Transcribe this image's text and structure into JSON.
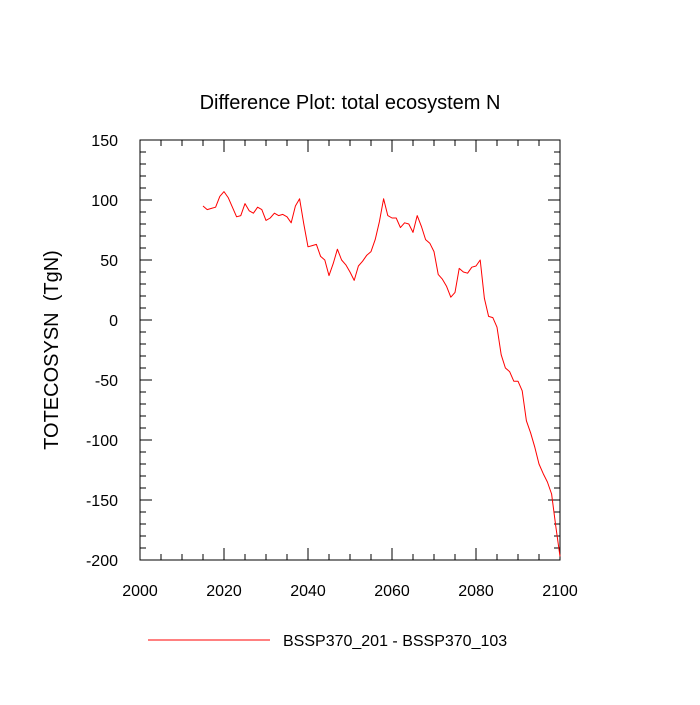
{
  "chart_data": {
    "type": "line",
    "title": "Difference Plot: total ecosystem N",
    "xlabel": "",
    "ylabel": "TOTECOSYSN  (TgN)",
    "xlim": [
      2000,
      2100
    ],
    "ylim": [
      -200,
      150
    ],
    "xticks": [
      2000,
      2020,
      2040,
      2060,
      2080,
      2100
    ],
    "yticks": [
      150,
      100,
      50,
      0,
      -50,
      -100,
      -150,
      -200
    ],
    "grid": false,
    "legend_position": "bottom",
    "series": [
      {
        "name": "BSSP370_201 - BSSP370_103",
        "color": "#ff0000",
        "x": [
          2015,
          2016,
          2017,
          2018,
          2019,
          2020,
          2021,
          2022,
          2023,
          2024,
          2025,
          2026,
          2027,
          2028,
          2029,
          2030,
          2031,
          2032,
          2033,
          2034,
          2035,
          2036,
          2037,
          2038,
          2039,
          2040,
          2041,
          2042,
          2043,
          2044,
          2045,
          2046,
          2047,
          2048,
          2049,
          2050,
          2051,
          2052,
          2053,
          2054,
          2055,
          2056,
          2057,
          2058,
          2059,
          2060,
          2061,
          2062,
          2063,
          2064,
          2065,
          2066,
          2067,
          2068,
          2069,
          2070,
          2071,
          2072,
          2073,
          2074,
          2075,
          2076,
          2077,
          2078,
          2079,
          2080,
          2081,
          2082,
          2083,
          2084,
          2085,
          2086,
          2087,
          2088,
          2089,
          2090,
          2091,
          2092,
          2093,
          2094,
          2095,
          2096,
          2097,
          2098,
          2099,
          2100
        ],
        "y": [
          95,
          92,
          93,
          94,
          103,
          107,
          102,
          94,
          86,
          87,
          97,
          91,
          89,
          94,
          92,
          83,
          85,
          89,
          87,
          88,
          86,
          81,
          95,
          101,
          80,
          61,
          62,
          63,
          53,
          50,
          37,
          47,
          59,
          50,
          46,
          40,
          33,
          45,
          49,
          54,
          57,
          67,
          82,
          101,
          87,
          85,
          85,
          77,
          81,
          80,
          73,
          87,
          78,
          67,
          64,
          57,
          38,
          34,
          28,
          19,
          23,
          43,
          40,
          39,
          44,
          45,
          50,
          18,
          3,
          2,
          -6,
          -29,
          -40,
          -43,
          -51,
          -51,
          -59,
          -84,
          -94,
          -106,
          -120,
          -128,
          -135,
          -145,
          -172,
          -197
        ]
      }
    ]
  }
}
